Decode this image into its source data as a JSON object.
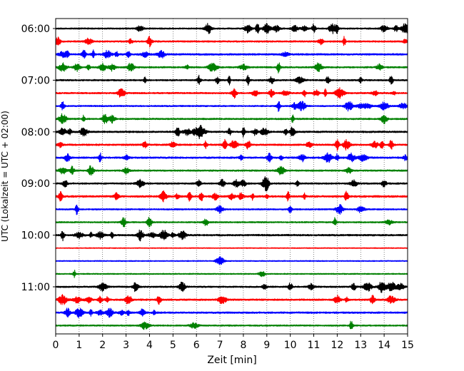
{
  "chart_data": {
    "type": "line",
    "chart_subtype": "helicorder-seismogram",
    "title": "",
    "xlabel": "Zeit  [min]",
    "ylabel": "UTC (Lokalzeit = UTC + 02:00)",
    "xlim": [
      0,
      15
    ],
    "x_ticks": [
      "0",
      "1",
      "2",
      "3",
      "4",
      "5",
      "6",
      "7",
      "8",
      "9",
      "10",
      "11",
      "12",
      "13",
      "14",
      "15"
    ],
    "grid": "vertical dotted at each minute",
    "legend": "none",
    "time_ticks": [
      {
        "label": "06:00",
        "row": 0
      },
      {
        "label": "07:00",
        "row": 4
      },
      {
        "label": "08:00",
        "row": 8
      },
      {
        "label": "09:00",
        "row": 12
      },
      {
        "label": "10:00",
        "row": 16
      },
      {
        "label": "11:00",
        "row": 20
      }
    ],
    "trace_color_cycle": [
      "#000000",
      "#ff0000",
      "#0000ff",
      "#008000"
    ],
    "rows": [
      {
        "start": "06:00",
        "color": "#000000",
        "activity": 0.5,
        "bursts": [
          3.6,
          6.5,
          8.2,
          8.6,
          9.0,
          9.4,
          10.2,
          10.6,
          11.0,
          11.8,
          12.0,
          14.0,
          14.5,
          14.9
        ]
      },
      {
        "start": "06:15",
        "color": "#ff0000",
        "activity": 0.6,
        "bursts": [
          0.1,
          1.4,
          3.2,
          4.0,
          11.3,
          12.3,
          14.9
        ]
      },
      {
        "start": "06:30",
        "color": "#0000ff",
        "activity": 0.7,
        "bursts": [
          0.3,
          0.5,
          1.2,
          1.6,
          2.2,
          2.6,
          3.1,
          3.8,
          4.5,
          9.8
        ]
      },
      {
        "start": "06:45",
        "color": "#008000",
        "activity": 0.6,
        "bursts": [
          0.3,
          0.9,
          1.4,
          2.0,
          2.4,
          3.2,
          5.6,
          6.7,
          8.0,
          9.5,
          11.2,
          13.8
        ]
      },
      {
        "start": "07:00",
        "color": "#000000",
        "activity": 0.6,
        "bursts": [
          3.8,
          6.1,
          6.9,
          7.4,
          8.2,
          9.2,
          10.4,
          11.6,
          13.0,
          14.3
        ]
      },
      {
        "start": "07:15",
        "color": "#ff0000",
        "activity": 0.6,
        "bursts": [
          2.8,
          7.6,
          8.5,
          9.2,
          9.8,
          10.6,
          11.1,
          11.5,
          12.1,
          13.6,
          14.4
        ]
      },
      {
        "start": "07:30",
        "color": "#0000ff",
        "activity": 0.5,
        "bursts": [
          0.3,
          9.5,
          10.2,
          10.5,
          12.5,
          13.0,
          13.3,
          14.0,
          14.8
        ]
      },
      {
        "start": "07:45",
        "color": "#008000",
        "activity": 0.6,
        "bursts": [
          0.3,
          1.2,
          2.1,
          2.4,
          10.1,
          14.0
        ]
      },
      {
        "start": "08:00",
        "color": "#000000",
        "activity": 0.7,
        "bursts": [
          0.3,
          0.6,
          1.2,
          5.2,
          5.6,
          6.0,
          6.2,
          7.4,
          8.0,
          8.5,
          8.9,
          9.8,
          10.1
        ]
      },
      {
        "start": "08:15",
        "color": "#ff0000",
        "activity": 0.7,
        "bursts": [
          0.2,
          3.8,
          5.0,
          6.4,
          7.2,
          7.6,
          8.2,
          10.8,
          12.0,
          12.4,
          13.6,
          13.9,
          14.3
        ]
      },
      {
        "start": "08:30",
        "color": "#0000ff",
        "activity": 0.7,
        "bursts": [
          0.5,
          1.9,
          3.0,
          7.9,
          9.1,
          9.6,
          10.5,
          11.6,
          12.0,
          12.6,
          13.1,
          14.9
        ]
      },
      {
        "start": "08:45",
        "color": "#008000",
        "activity": 0.6,
        "bursts": [
          0.3,
          0.7,
          1.5,
          3.0,
          9.6,
          12.5
        ]
      },
      {
        "start": "09:00",
        "color": "#000000",
        "activity": 0.6,
        "bursts": [
          0.4,
          3.6,
          6.1,
          7.1,
          7.7,
          8.0,
          8.9,
          9.0,
          10.3,
          12.7,
          14.0
        ]
      },
      {
        "start": "09:15",
        "color": "#ff0000",
        "activity": 0.8,
        "bursts": [
          0.2,
          2.6,
          4.6,
          5.2,
          5.7,
          6.2,
          6.8,
          7.5,
          7.9,
          8.4,
          9.0,
          9.9,
          10.6,
          12.4
        ]
      },
      {
        "start": "09:30",
        "color": "#0000ff",
        "activity": 0.5,
        "bursts": [
          0.9,
          7.0,
          10.0,
          12.1,
          13.0
        ]
      },
      {
        "start": "09:45",
        "color": "#008000",
        "activity": 0.5,
        "bursts": [
          2.9,
          4.0,
          6.4,
          11.9,
          14.2
        ]
      },
      {
        "start": "10:00",
        "color": "#000000",
        "activity": 0.7,
        "bursts": [
          0.3,
          1.0,
          1.5,
          1.9,
          2.4,
          3.6,
          4.1,
          4.6,
          5.0,
          5.4
        ]
      },
      {
        "start": "10:15",
        "color": "#ff0000",
        "activity": 0.1,
        "bursts": []
      },
      {
        "start": "10:30",
        "color": "#0000ff",
        "activity": 0.2,
        "bursts": [
          7.0
        ]
      },
      {
        "start": "10:45",
        "color": "#008000",
        "activity": 0.3,
        "bursts": [
          0.8,
          8.8
        ]
      },
      {
        "start": "11:00",
        "color": "#000000",
        "activity": 0.6,
        "bursts": [
          2.0,
          3.4,
          5.4,
          8.9,
          10.0,
          10.9,
          12.7,
          13.3,
          13.9,
          14.3,
          14.7
        ]
      },
      {
        "start": "11:15",
        "color": "#ff0000",
        "activity": 0.7,
        "bursts": [
          0.3,
          0.9,
          1.4,
          1.9,
          2.2,
          3.1,
          4.4,
          7.1,
          12.0,
          12.4,
          13.5,
          14.3
        ]
      },
      {
        "start": "11:30",
        "color": "#0000ff",
        "activity": 0.7,
        "bursts": [
          0.5,
          1.0,
          1.5,
          1.9,
          2.3,
          2.8,
          3.1,
          3.7,
          4.2
        ]
      },
      {
        "start": "11:45",
        "color": "#008000",
        "activity": 0.5,
        "bursts": [
          3.8,
          5.9,
          12.6
        ]
      }
    ]
  }
}
